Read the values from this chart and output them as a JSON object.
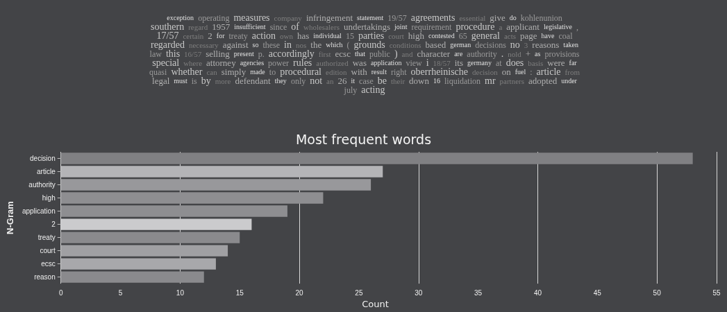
{
  "chart_data": [
    {
      "type": "other",
      "annotations": [
        "exception",
        "operating",
        "measures",
        "company",
        "infringement",
        "statement",
        "19/57",
        "agreements",
        "essential",
        "give",
        "do",
        "kohlenunion",
        "southern",
        "regard",
        "1957",
        "insufficient",
        "since",
        "of",
        "wholesalers",
        "undertakings",
        "joint",
        "requirement",
        "procedure",
        "a",
        "applicant",
        "legislative",
        ",",
        "17/57",
        "certain",
        "2",
        "for",
        "treaty",
        "action",
        "own",
        "has",
        "individual",
        "15",
        "parties",
        "court",
        "high",
        "contested",
        "65",
        "general",
        "acts",
        "page",
        "have",
        "coal",
        "regarded",
        "necessary",
        "against",
        "so",
        "these",
        "in",
        "nos",
        "the",
        "which",
        "(",
        "grounds",
        "conditions",
        "based",
        "german",
        "decisions",
        "no",
        "3",
        "reasons",
        "taken",
        "law",
        "this",
        "16/57",
        "selling",
        "present",
        "p.",
        "accordingly",
        "first",
        "ecsc",
        "that",
        "public",
        ")",
        "and",
        "character",
        "are",
        "authority",
        ".",
        "nold",
        "+",
        "as",
        "provisions",
        "special",
        "where",
        "attorney",
        "agencies",
        "power",
        "rules",
        "authorized",
        "was",
        "application",
        "view",
        "i",
        "18/57",
        "its",
        "germany",
        "at",
        "does",
        "basis",
        "were",
        "far",
        "quasi",
        "whether",
        "can",
        "simply",
        "made",
        "to",
        "procedural",
        "edition",
        "with",
        "result",
        "right",
        "oberrheinische",
        "decision",
        "on",
        "fuel",
        ":",
        "article",
        "from",
        "legal",
        "must",
        "is",
        "by",
        "more",
        "defendant",
        "they",
        "only",
        "not",
        "an",
        "26",
        "it",
        "case",
        "be",
        "their",
        "down",
        "16",
        "liquidation",
        "mr",
        "partners",
        "adopted",
        "under",
        "july",
        "acting"
      ]
    },
    {
      "type": "bar",
      "orientation": "horizontal",
      "title": "Most frequent words",
      "xlabel": "Count",
      "ylabel": "N-Gram",
      "categories": [
        "decision",
        "article",
        "authority",
        "high",
        "application",
        "2",
        "treaty",
        "court",
        "ecsc",
        "reason"
      ],
      "values": [
        53,
        27,
        26,
        22,
        19,
        16,
        15,
        14,
        13,
        12
      ],
      "colors": [
        "#808083",
        "#b4b4b7",
        "#98989b",
        "#8e8e91",
        "#8e8e91",
        "#cbcbcd",
        "#8a8a8d",
        "#a0a0a3",
        "#a8a8ab",
        "#8a8a8d"
      ],
      "xlim": [
        0,
        55
      ],
      "xticks": [
        0,
        5,
        10,
        15,
        20,
        25,
        30,
        35,
        40,
        45,
        50,
        55
      ],
      "grid": "x"
    }
  ]
}
